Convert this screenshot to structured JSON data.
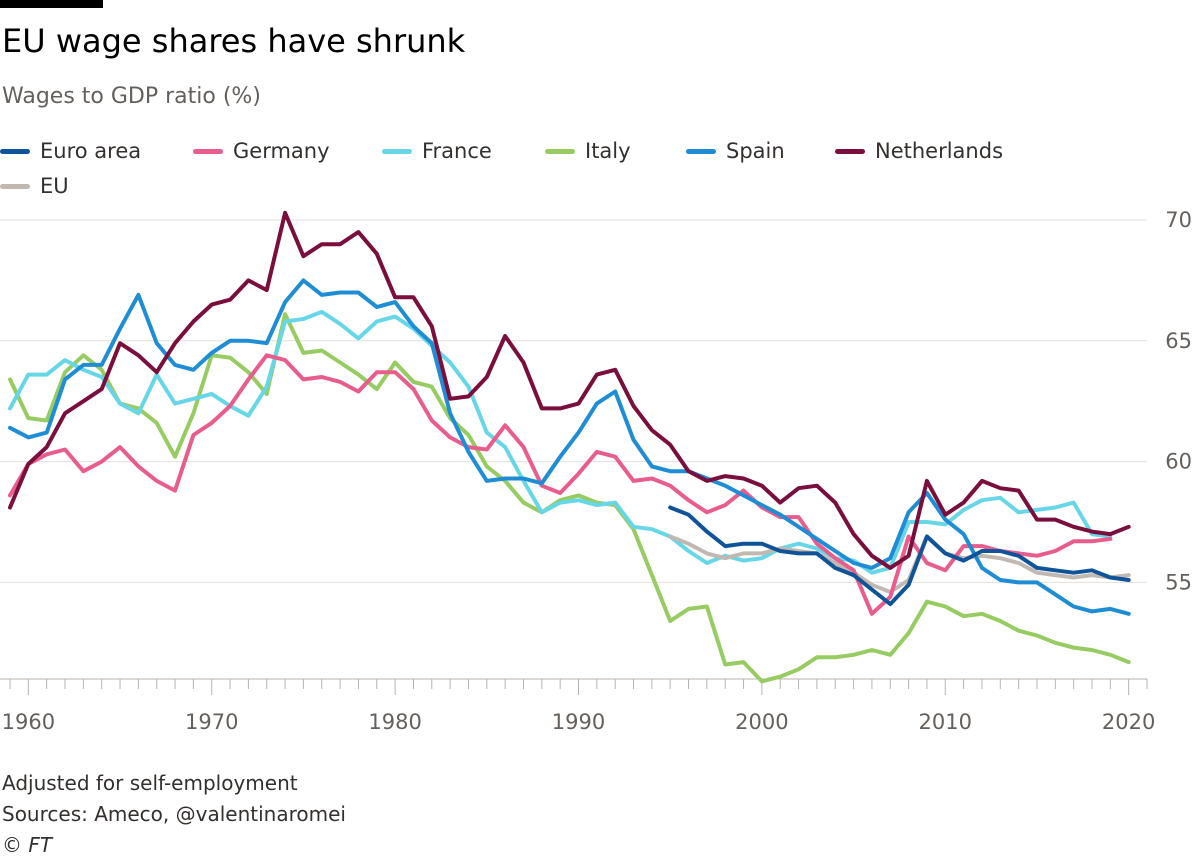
{
  "header": {
    "title": "EU wage shares have shrunk",
    "subtitle": "Wages to GDP ratio (%)"
  },
  "footer": {
    "note": "Adjusted for self-employment",
    "sources": "Sources: Ameco, @valentinaromei",
    "copyright": "© FT"
  },
  "chart_data": {
    "type": "line",
    "title": "EU wage shares have shrunk",
    "subtitle": "Wages to GDP ratio (%)",
    "xlabel": "",
    "ylabel": "",
    "xlim": [
      1959,
      2021
    ],
    "ylim": [
      51,
      70
    ],
    "x_ticks": [
      1960,
      1970,
      1980,
      1990,
      2000,
      2010,
      2020
    ],
    "y_ticks": [
      55,
      60,
      65,
      70
    ],
    "y_axis_side": "right",
    "grid": "horizontal",
    "legend_position": "top",
    "series": [
      {
        "name": "Euro area",
        "color": "#0f5499",
        "start": 1995,
        "values": [
          58.1,
          57.8,
          57.1,
          56.5,
          56.6,
          56.6,
          56.3,
          56.2,
          56.2,
          55.6,
          55.3,
          54.7,
          54.1,
          54.9,
          56.9,
          56.2,
          55.9,
          56.3,
          56.3,
          56.1,
          55.6,
          55.5,
          55.4,
          55.5,
          55.2,
          55.1
        ]
      },
      {
        "name": "Germany",
        "color": "#e95d8c",
        "start": 1959,
        "values": [
          58.6,
          59.9,
          60.3,
          60.5,
          59.6,
          60.0,
          60.6,
          59.8,
          59.2,
          58.8,
          61.1,
          61.6,
          62.3,
          63.4,
          64.4,
          64.2,
          63.4,
          63.5,
          63.3,
          62.9,
          63.7,
          63.7,
          63.0,
          61.7,
          61.0,
          60.6,
          60.5,
          61.5,
          60.6,
          59.0,
          58.7,
          59.5,
          60.4,
          60.2,
          59.2,
          59.3,
          59.0,
          58.4,
          57.9,
          58.2,
          58.8,
          58.1,
          57.7,
          57.7,
          56.6,
          56.0,
          55.5,
          53.7,
          54.4,
          56.9,
          55.8,
          55.5,
          56.5,
          56.5,
          56.3,
          56.2,
          56.1,
          56.3,
          56.7,
          56.7,
          56.8
        ]
      },
      {
        "name": "France",
        "color": "#67d7e8",
        "start": 1959,
        "values": [
          62.2,
          63.6,
          63.6,
          64.2,
          63.8,
          63.5,
          62.4,
          62.0,
          63.6,
          62.4,
          62.6,
          62.8,
          62.3,
          61.9,
          63.1,
          65.8,
          65.9,
          66.2,
          65.7,
          65.1,
          65.8,
          66.0,
          65.5,
          64.8,
          64.1,
          63.1,
          61.2,
          60.6,
          59.2,
          57.9,
          58.3,
          58.4,
          58.2,
          58.3,
          57.3,
          57.2,
          56.9,
          56.3,
          55.8,
          56.1,
          55.9,
          56.0,
          56.4,
          56.6,
          56.4,
          56.0,
          55.9,
          55.4,
          55.6,
          57.5,
          57.5,
          57.4,
          58.0,
          58.4,
          58.5,
          57.9,
          58.0,
          58.1,
          58.3,
          57.0,
          56.9
        ]
      },
      {
        "name": "Italy",
        "color": "#96cc61",
        "start": 1959,
        "values": [
          63.4,
          61.8,
          61.7,
          63.7,
          64.4,
          63.8,
          62.4,
          62.2,
          61.6,
          60.2,
          62.0,
          64.4,
          64.3,
          63.7,
          62.8,
          66.1,
          64.5,
          64.6,
          64.1,
          63.6,
          63.0,
          64.1,
          63.3,
          63.1,
          61.8,
          61.1,
          59.8,
          59.2,
          58.3,
          57.9,
          58.4,
          58.6,
          58.3,
          58.2,
          57.2,
          55.3,
          53.4,
          53.9,
          54.0,
          51.6,
          51.7,
          50.9,
          51.1,
          51.4,
          51.9,
          51.9,
          52.0,
          52.2,
          52.0,
          52.9,
          54.2,
          54.0,
          53.6,
          53.7,
          53.4,
          53.0,
          52.8,
          52.5,
          52.3,
          52.2,
          52.0,
          51.7
        ]
      },
      {
        "name": "Spain",
        "color": "#1f8dd6",
        "start": 1959,
        "values": [
          61.4,
          61.0,
          61.2,
          63.4,
          64.0,
          64.0,
          65.5,
          66.9,
          64.9,
          64.0,
          63.8,
          64.5,
          65.0,
          65.0,
          64.9,
          66.6,
          67.5,
          66.9,
          67.0,
          67.0,
          66.4,
          66.6,
          65.6,
          64.9,
          62.0,
          60.4,
          59.2,
          59.3,
          59.3,
          59.1,
          60.2,
          61.2,
          62.4,
          62.9,
          60.9,
          59.8,
          59.6,
          59.6,
          59.3,
          59.0,
          58.6,
          58.2,
          57.8,
          57.3,
          56.8,
          56.3,
          55.8,
          55.6,
          56.0,
          57.9,
          58.7,
          57.6,
          57.0,
          55.6,
          55.1,
          55.0,
          55.0,
          54.5,
          54.0,
          53.8,
          53.9,
          53.7
        ]
      },
      {
        "name": "Netherlands",
        "color": "#7a0e3c",
        "start": 1959,
        "values": [
          58.1,
          59.9,
          60.6,
          62.0,
          62.5,
          63.0,
          64.9,
          64.4,
          63.7,
          64.9,
          65.8,
          66.5,
          66.7,
          67.5,
          67.1,
          70.3,
          68.5,
          69.0,
          69.0,
          69.5,
          68.6,
          66.8,
          66.8,
          65.6,
          62.6,
          62.7,
          63.5,
          65.2,
          64.1,
          62.2,
          62.2,
          62.4,
          63.6,
          63.8,
          62.3,
          61.3,
          60.7,
          59.6,
          59.2,
          59.4,
          59.3,
          59.0,
          58.3,
          58.9,
          59.0,
          58.3,
          57.0,
          56.1,
          55.6,
          56.1,
          59.2,
          57.8,
          58.3,
          59.2,
          58.9,
          58.8,
          57.6,
          57.6,
          57.3,
          57.1,
          57.0,
          57.3
        ]
      },
      {
        "name": "EU",
        "color": "#c2b8b2",
        "start": 1995,
        "values": [
          56.9,
          56.6,
          56.2,
          56.0,
          56.2,
          56.2,
          56.4,
          56.3,
          56.2,
          55.8,
          55.4,
          54.9,
          54.6,
          55.1,
          56.9,
          56.2,
          56.0,
          56.1,
          56.0,
          55.8,
          55.4,
          55.3,
          55.2,
          55.3,
          55.2,
          55.3
        ]
      }
    ]
  }
}
